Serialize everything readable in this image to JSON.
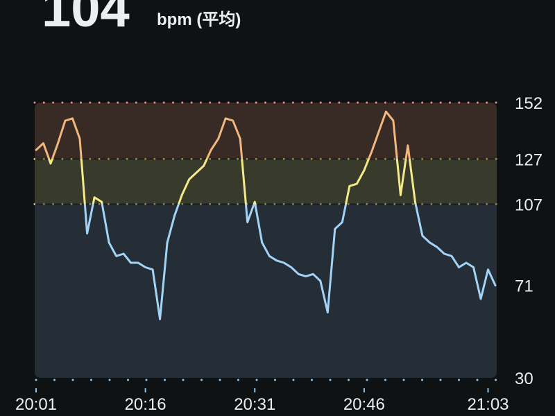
{
  "chart_data": {
    "type": "line",
    "average": 104,
    "unit": "bpm (平均)",
    "x": [
      "20:01",
      "20:02",
      "20:03",
      "20:04",
      "20:05",
      "20:06",
      "20:07",
      "20:08",
      "20:09",
      "20:10",
      "20:11",
      "20:12",
      "20:13",
      "20:14",
      "20:15",
      "20:16",
      "20:17",
      "20:18",
      "20:19",
      "20:20",
      "20:21",
      "20:22",
      "20:23",
      "20:24",
      "20:25",
      "20:26",
      "20:27",
      "20:28",
      "20:29",
      "20:30",
      "20:31",
      "20:32",
      "20:33",
      "20:34",
      "20:35",
      "20:36",
      "20:37",
      "20:38",
      "20:39",
      "20:40",
      "20:41",
      "20:42",
      "20:43",
      "20:44",
      "20:45",
      "20:46",
      "20:47",
      "20:48",
      "20:49",
      "20:50",
      "20:51",
      "20:52",
      "20:53",
      "20:54",
      "20:55",
      "20:56",
      "20:57",
      "20:58",
      "20:59",
      "21:00",
      "21:01",
      "21:02",
      "21:03",
      "21:04"
    ],
    "values": [
      131,
      134,
      125,
      134,
      144,
      145,
      136,
      94,
      110,
      108,
      90,
      84,
      85,
      81,
      81,
      79,
      78,
      56,
      90,
      102,
      111,
      118,
      121,
      124,
      131,
      136,
      145,
      144,
      136,
      99,
      108,
      90,
      84,
      82,
      81,
      79,
      76,
      75,
      76,
      73,
      59,
      96,
      99,
      115,
      116,
      122,
      130,
      139,
      148,
      144,
      111,
      133,
      108,
      93,
      90,
      88,
      85,
      84,
      79,
      81,
      79,
      65,
      78,
      71
    ],
    "xlim": [
      "20:01",
      "21:04"
    ],
    "xticks": [
      "20:01",
      "20:16",
      "20:31",
      "20:46",
      "21:03"
    ],
    "ylim": [
      30,
      152
    ],
    "yticks": [
      30,
      71,
      107,
      127,
      152
    ],
    "zones": [
      {
        "from": 30,
        "to": 107,
        "fill": "#252d36",
        "line": "#a3d3f7",
        "dots": "#f2e36f"
      },
      {
        "from": 107,
        "to": 127,
        "fill": "#383a2b",
        "line": "#f3ea8a",
        "dots": "#f2e36f"
      },
      {
        "from": 127,
        "to": 152,
        "fill": "#382b25",
        "line": "#f1b77e",
        "dots": "#ee8f86"
      }
    ],
    "bottom_dots": "#8ec8f0"
  }
}
